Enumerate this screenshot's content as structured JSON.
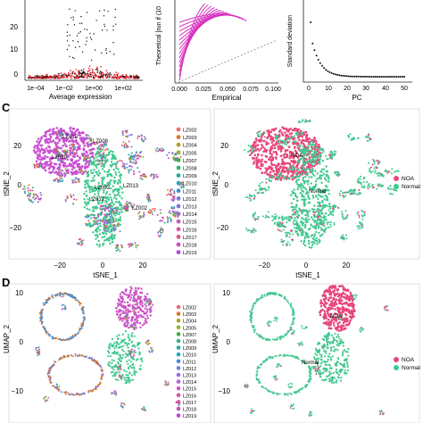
{
  "figure": {
    "panel_c": {
      "letter": "C",
      "left_plot": {
        "xlabel": "tSNE_1",
        "ylabel": "tSNE_2",
        "xticks": [
          "−20",
          "0",
          "20"
        ],
        "yticks": [
          "20",
          "0",
          "−20"
        ],
        "legend": [
          "LZ002",
          "LZ003",
          "LZ004",
          "LZ005",
          "LZ007",
          "LZ008",
          "LZ009",
          "LZ010",
          "LZ011",
          "LZ012",
          "LZ013",
          "LZ014",
          "LZ015",
          "LZ016",
          "LZ017",
          "LZ018",
          "LZ019"
        ],
        "annotations": [
          "LZ010",
          "LZ019",
          "LZ008",
          "LZ003",
          "LZ013",
          "LZ012",
          "LZ002"
        ]
      },
      "right_plot": {
        "xlabel": "tSNE_1",
        "ylabel": "tSNE_2",
        "xticks": [
          "−20",
          "0",
          "20"
        ],
        "yticks": [
          "20",
          "0",
          "−20"
        ],
        "legend": [
          "NOA",
          "Normal"
        ],
        "annotations": [
          "NOA",
          "Normal"
        ]
      }
    },
    "panel_d": {
      "letter": "D",
      "left_plot": {
        "ylabel": "UMAP_2",
        "yticks": [
          "10",
          "0",
          "−10"
        ],
        "legend": [
          "LZ002",
          "LZ003",
          "LZ004",
          "LZ005",
          "LZ007",
          "LZ008",
          "LZ009",
          "LZ010",
          "LZ011",
          "LZ012",
          "LZ013",
          "LZ014",
          "LZ015",
          "LZ016",
          "LZ017",
          "LZ018",
          "LZ019"
        ]
      },
      "right_plot": {
        "ylabel": "UMAP_2",
        "yticks": [
          "10",
          "0",
          "−10"
        ],
        "legend": [
          "NOA",
          "Normal"
        ],
        "annotations": [
          "NOA",
          "Normal"
        ]
      }
    },
    "top_strip": {
      "left": {
        "xlabel": "Average expression",
        "yticks": [
          "20",
          "10",
          "0"
        ],
        "xticks": [
          "1e−04",
          "1e−02",
          "1e+00",
          "1e+02"
        ]
      },
      "middle": {
        "ylabel": "Theoretical [run if (10",
        "xlabel": "Empirical",
        "xticks": [
          "0.000",
          "0.025",
          "0.050",
          "0.075",
          "0.100"
        ]
      },
      "right": {
        "ylabel": "Standard deviation",
        "xlabel": "PC",
        "xticks": [
          "0",
          "10",
          "20",
          "30",
          "40",
          "50"
        ]
      }
    },
    "colors": {
      "samples": [
        "#f26b6b",
        "#d9742a",
        "#b5a020",
        "#8fb52b",
        "#3fae3a",
        "#2fb57a",
        "#22b0a0",
        "#25a7c4",
        "#3f8fd8",
        "#6b7fe0",
        "#8d6fe0",
        "#b060d8",
        "#cc55c6",
        "#dd52a8",
        "#e0528a",
        "#c94fb9",
        "#b54ad2"
      ],
      "noa": "#e8467a",
      "normal": "#3ec88e",
      "mito": "#d82fbf",
      "red_points": "#e11f27"
    }
  }
}
